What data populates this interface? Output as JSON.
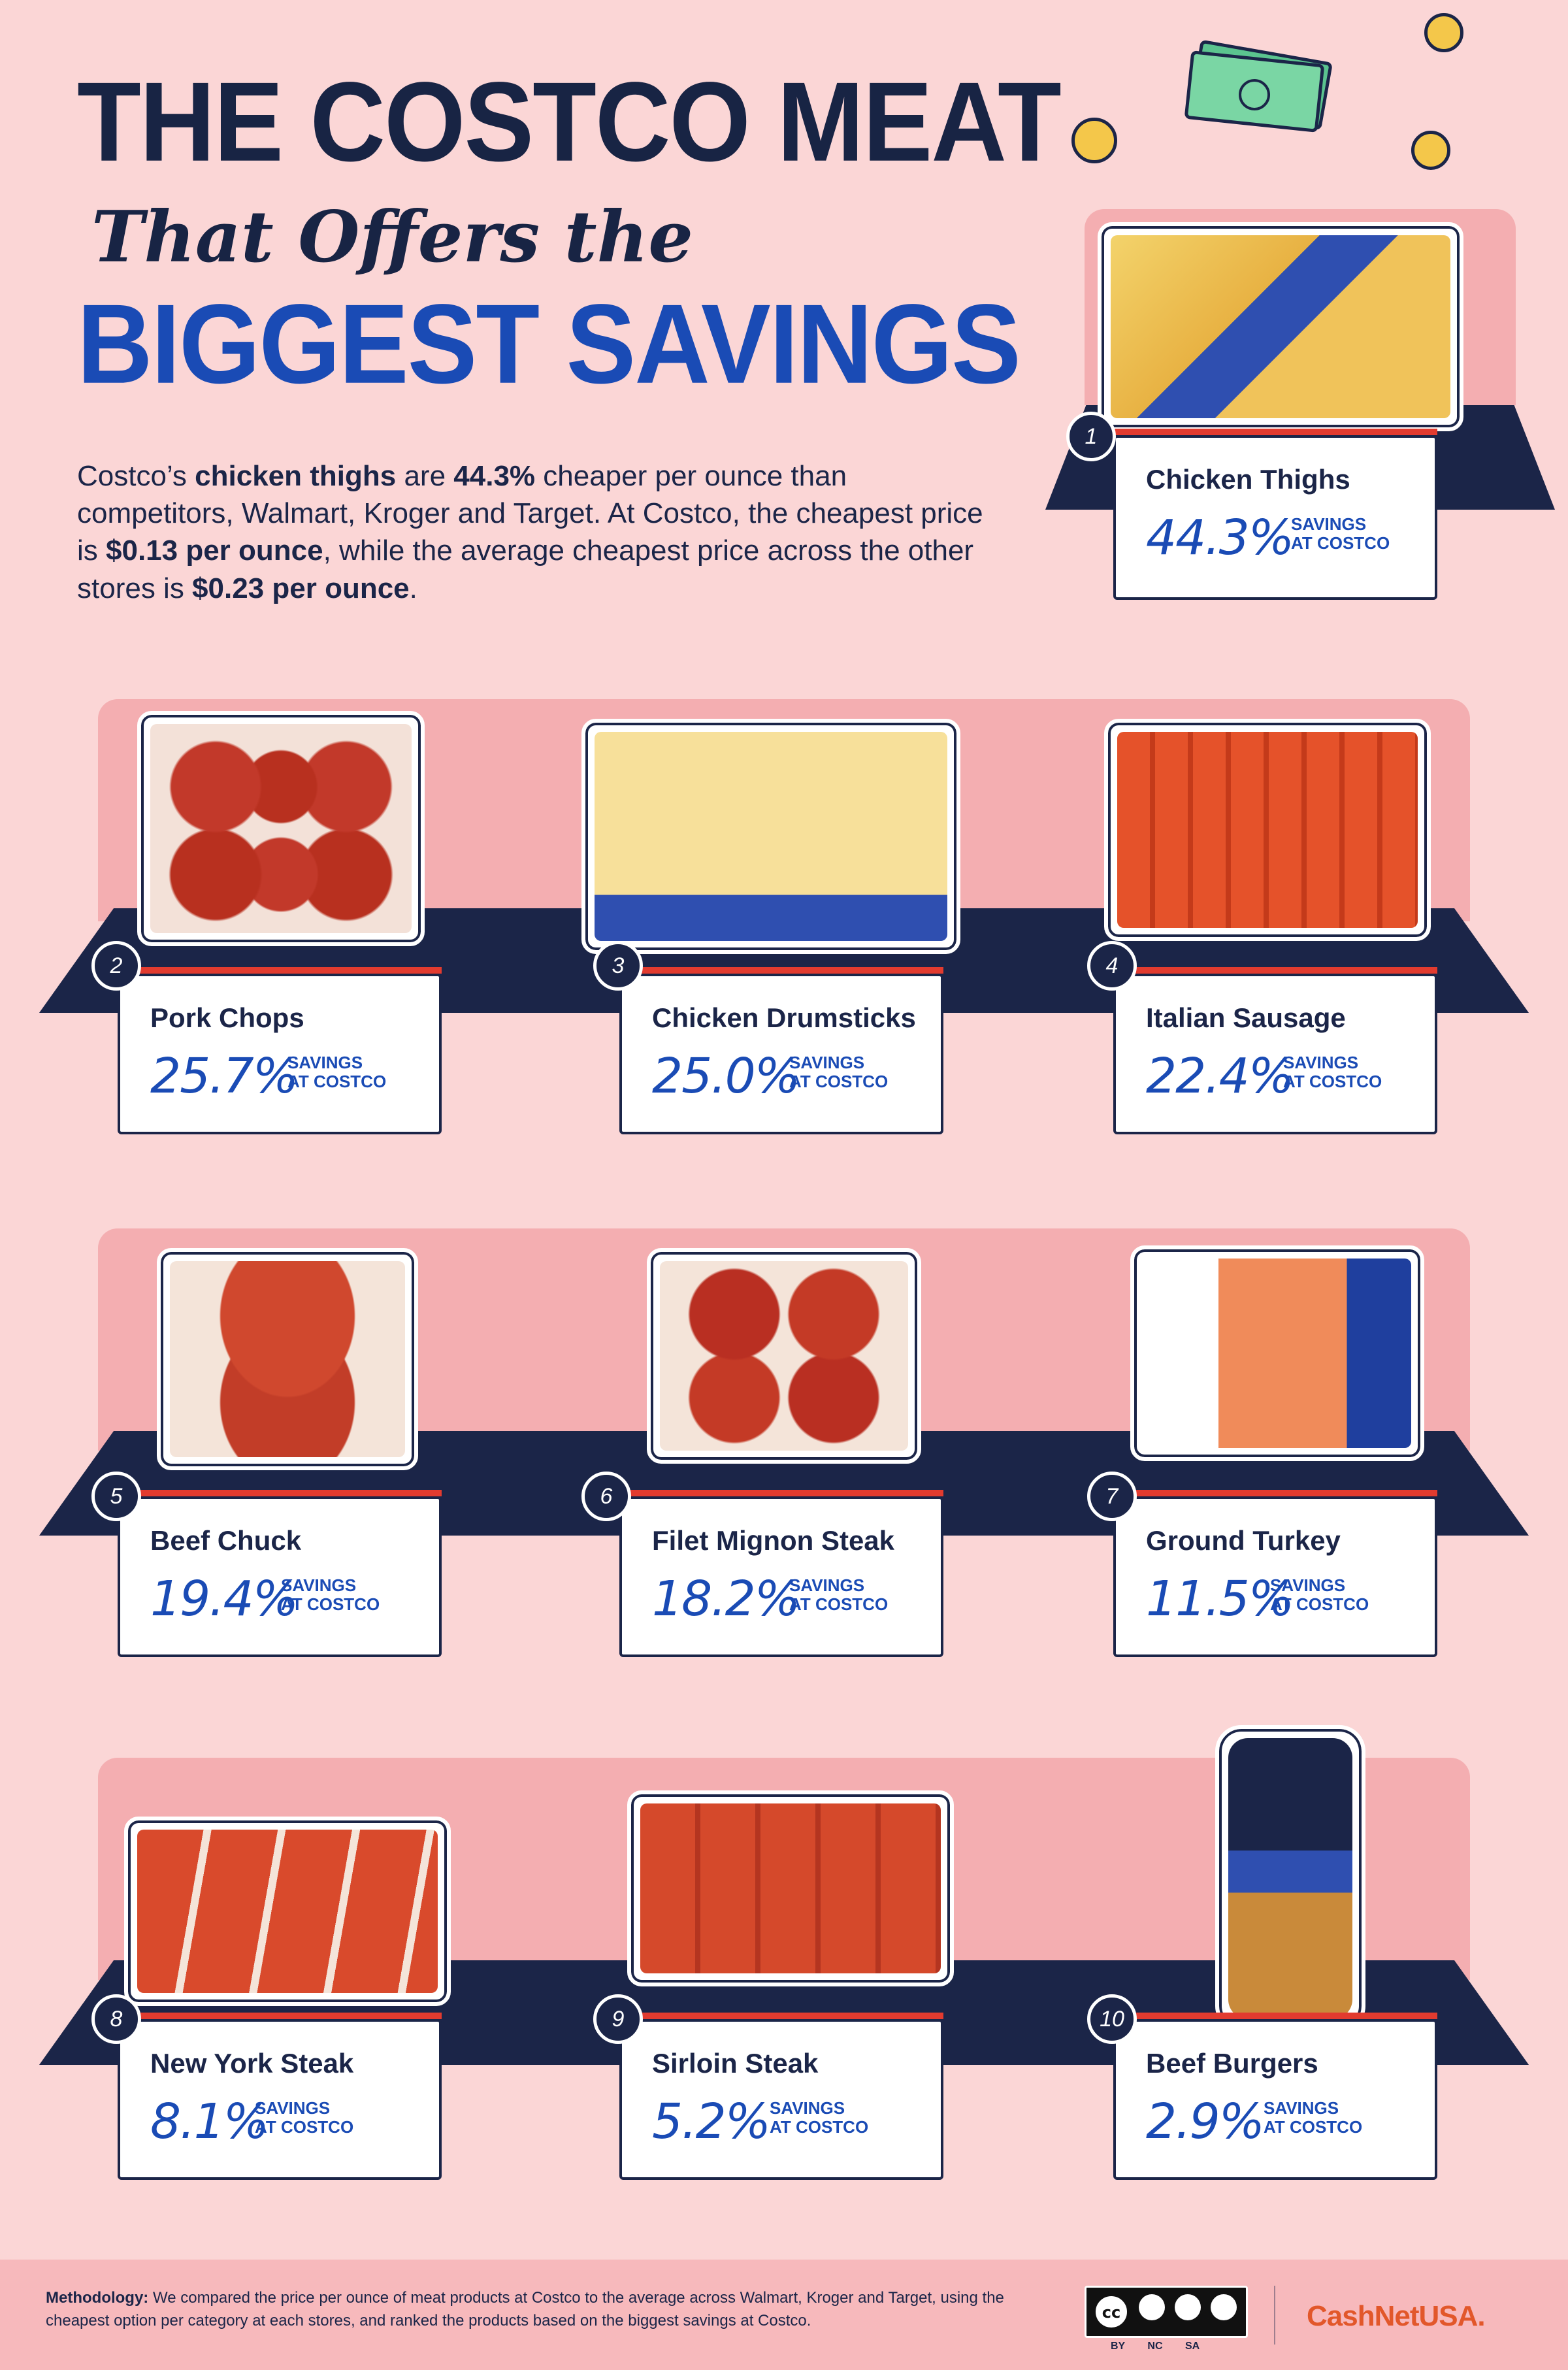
{
  "title": {
    "line1": "THE COSTCO MEAT",
    "line2": "That Offers the",
    "line3": "BIGGEST SAVINGS"
  },
  "intro": {
    "p1": "Costco’s ",
    "b1": "chicken thighs",
    "p2": " are ",
    "b2": "44.3%",
    "p3": " cheaper per ounce than competitors, Walmart, Kroger and Target. At Costco, the cheapest price is ",
    "b3": "$0.13 per ounce",
    "p4": ", while the average cheapest price across the other stores is ",
    "b4": "$0.23 per ounce",
    "p5": "."
  },
  "savings_label_line1": "SAVINGS",
  "savings_label_line2": "AT COSTCO",
  "items": [
    {
      "rank": "1",
      "name": "Chicken Thighs",
      "savings": "44.3%"
    },
    {
      "rank": "2",
      "name": "Pork Chops",
      "savings": "25.7%"
    },
    {
      "rank": "3",
      "name": "Chicken Drumsticks",
      "savings": "25.0%"
    },
    {
      "rank": "4",
      "name": "Italian Sausage",
      "savings": "22.4%"
    },
    {
      "rank": "5",
      "name": "Beef Chuck",
      "savings": "19.4%"
    },
    {
      "rank": "6",
      "name": "Filet Mignon Steak",
      "savings": "18.2%"
    },
    {
      "rank": "7",
      "name": "Ground Turkey",
      "savings": "11.5%"
    },
    {
      "rank": "8",
      "name": "New York Steak",
      "savings": "8.1%"
    },
    {
      "rank": "9",
      "name": "Sirloin Steak",
      "savings": "5.2%"
    },
    {
      "rank": "10",
      "name": "Beef Burgers",
      "savings": "2.9%"
    }
  ],
  "footer": {
    "method_label": "Methodology:",
    "method_text": " We compared the price per ounce of meat products at Costco to the average across Walmart, Kroger and Target, using the cheapest option per category at each stores, and ranked the products based on the biggest savings at Costco.",
    "cc_labels": "BY NC SA",
    "brand": "CashNetUSA."
  },
  "colors": {
    "background": "#fbd6d6",
    "navy": "#1b2548",
    "blue": "#1a4bb5",
    "red": "#e23b2f",
    "wall": "#f4aeb1",
    "brand": "#e2572a"
  }
}
